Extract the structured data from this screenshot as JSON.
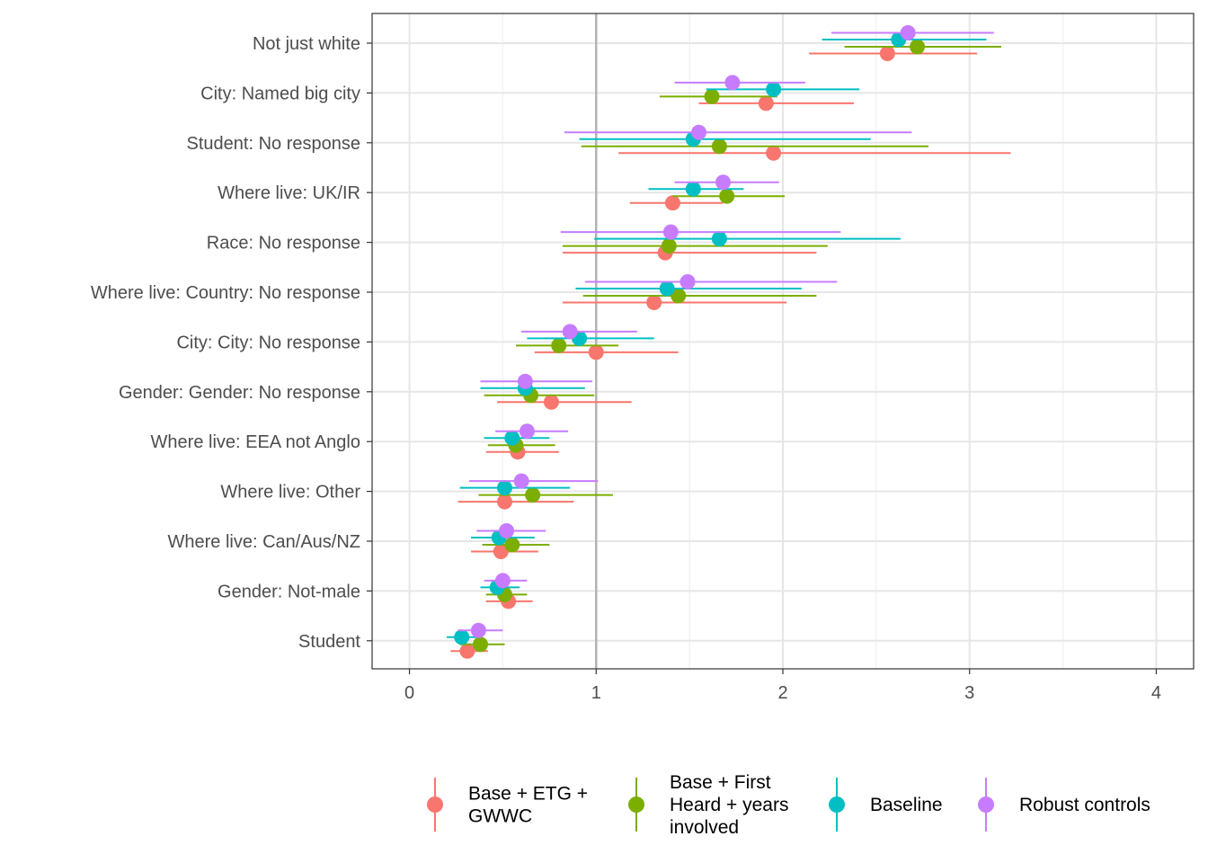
{
  "chart_data": {
    "type": "dot-range",
    "title": "",
    "xlabel": "",
    "ylabel": "",
    "xlim": [
      -0.2,
      4.2
    ],
    "x_ticks": [
      0,
      1,
      2,
      3,
      4
    ],
    "reference_line": 1,
    "grid": true,
    "legend_position": "bottom",
    "categories": [
      "Not just white",
      "City: Named big city",
      "Student: No response",
      "Where live: UK/IR",
      "Race: No response",
      "Where live: Country: No response",
      "City: City: No response",
      "Gender: Gender: No response",
      "Where live: EEA not Anglo",
      "Where live: Other",
      "Where live: Can/Aus/NZ",
      "Gender: Not-male",
      "Student"
    ],
    "series": [
      {
        "name": "Base + ETG + GWWC",
        "legend_lines": [
          "Base + ETG +",
          "GWWC"
        ],
        "color": "#F8766D",
        "estimate": [
          2.56,
          1.91,
          1.95,
          1.41,
          1.37,
          1.31,
          1.0,
          0.76,
          0.58,
          0.51,
          0.49,
          0.53,
          0.31
        ],
        "lower": [
          2.14,
          1.55,
          1.12,
          1.18,
          0.82,
          0.82,
          0.67,
          0.47,
          0.41,
          0.26,
          0.33,
          0.41,
          0.22
        ],
        "upper": [
          3.04,
          2.38,
          3.22,
          1.68,
          2.18,
          2.02,
          1.44,
          1.19,
          0.8,
          0.88,
          0.69,
          0.66,
          0.42
        ]
      },
      {
        "name": "Base + First Heard + years involved",
        "legend_lines": [
          "Base + First",
          "Heard + years",
          "involved"
        ],
        "color": "#7CAE00",
        "estimate": [
          2.72,
          1.62,
          1.66,
          1.7,
          1.39,
          1.44,
          0.8,
          0.65,
          0.57,
          0.66,
          0.55,
          0.51,
          0.38
        ],
        "lower": [
          2.33,
          1.34,
          0.92,
          1.41,
          0.82,
          0.93,
          0.57,
          0.4,
          0.42,
          0.37,
          0.39,
          0.41,
          0.27
        ],
        "upper": [
          3.17,
          1.97,
          2.78,
          2.01,
          2.24,
          2.18,
          1.12,
          0.99,
          0.78,
          1.09,
          0.75,
          0.63,
          0.51
        ]
      },
      {
        "name": "Baseline",
        "legend_lines": [
          "Baseline"
        ],
        "color": "#00BFC4",
        "estimate": [
          2.62,
          1.95,
          1.52,
          1.52,
          1.66,
          1.38,
          0.91,
          0.62,
          0.55,
          0.51,
          0.48,
          0.47,
          0.28
        ],
        "lower": [
          2.21,
          1.59,
          0.91,
          1.28,
          0.99,
          0.89,
          0.63,
          0.38,
          0.4,
          0.27,
          0.33,
          0.38,
          0.2
        ],
        "upper": [
          3.09,
          2.41,
          2.47,
          1.79,
          2.63,
          2.1,
          1.31,
          0.94,
          0.75,
          0.86,
          0.67,
          0.59,
          0.36
        ]
      },
      {
        "name": "Robust controls",
        "legend_lines": [
          "Robust controls"
        ],
        "color": "#C77CFF",
        "estimate": [
          2.67,
          1.73,
          1.55,
          1.68,
          1.4,
          1.49,
          0.86,
          0.62,
          0.63,
          0.6,
          0.52,
          0.5,
          0.37
        ],
        "lower": [
          2.26,
          1.42,
          0.83,
          1.42,
          0.81,
          0.94,
          0.6,
          0.38,
          0.46,
          0.32,
          0.36,
          0.4,
          0.26
        ],
        "upper": [
          3.13,
          2.12,
          2.69,
          1.98,
          2.31,
          2.29,
          1.22,
          0.98,
          0.85,
          1.01,
          0.73,
          0.63,
          0.5
        ]
      }
    ]
  }
}
